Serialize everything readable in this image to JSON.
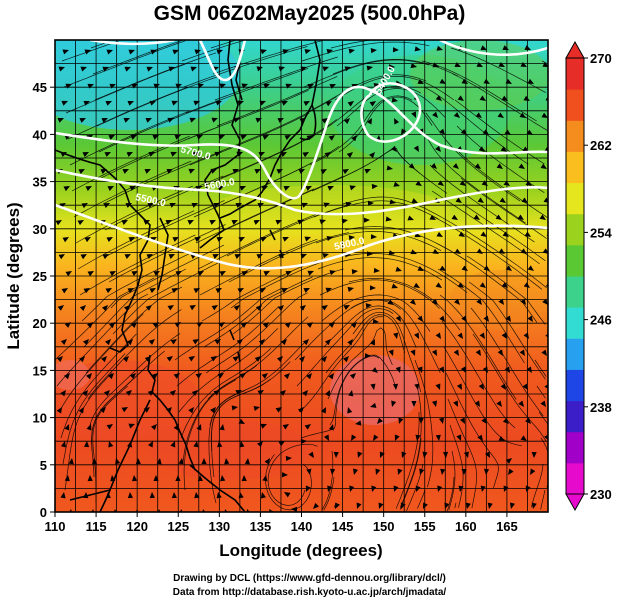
{
  "title": "GSM 06Z02May2025 (500.0hPa)",
  "x_axis": {
    "label": "Longitude (degrees)",
    "ticks": [
      "110",
      "115",
      "120",
      "125",
      "130",
      "135",
      "140",
      "145",
      "150",
      "155",
      "160",
      "165"
    ]
  },
  "y_axis": {
    "label": "Latitude  (degrees)",
    "ticks": [
      "0",
      "5",
      "10",
      "15",
      "20",
      "25",
      "30",
      "35",
      "40",
      "45"
    ]
  },
  "colorbar": {
    "ticks": [
      "230",
      "238",
      "246",
      "254",
      "262",
      "270"
    ],
    "min": 230,
    "max": 270,
    "colors": [
      "#e60acd",
      "#a000c8",
      "#3c1ec8",
      "#1e46e6",
      "#28a0f0",
      "#32dcd2",
      "#3cd28c",
      "#5ac832",
      "#9bd21e",
      "#e6e61e",
      "#fabe1e",
      "#f58c1e",
      "#f0501e",
      "#e62d28"
    ]
  },
  "contour_labels": [
    "5700.0",
    "5400.0",
    "5500.0",
    "5600.0",
    "5800.0"
  ],
  "credits": {
    "line1": "Drawing by DCL (https://www.gfd-dennou.org/library/dcl/)",
    "line2": "Data from http://database.rish.kyoto-u.ac.jp/arch/jmadata/"
  }
}
